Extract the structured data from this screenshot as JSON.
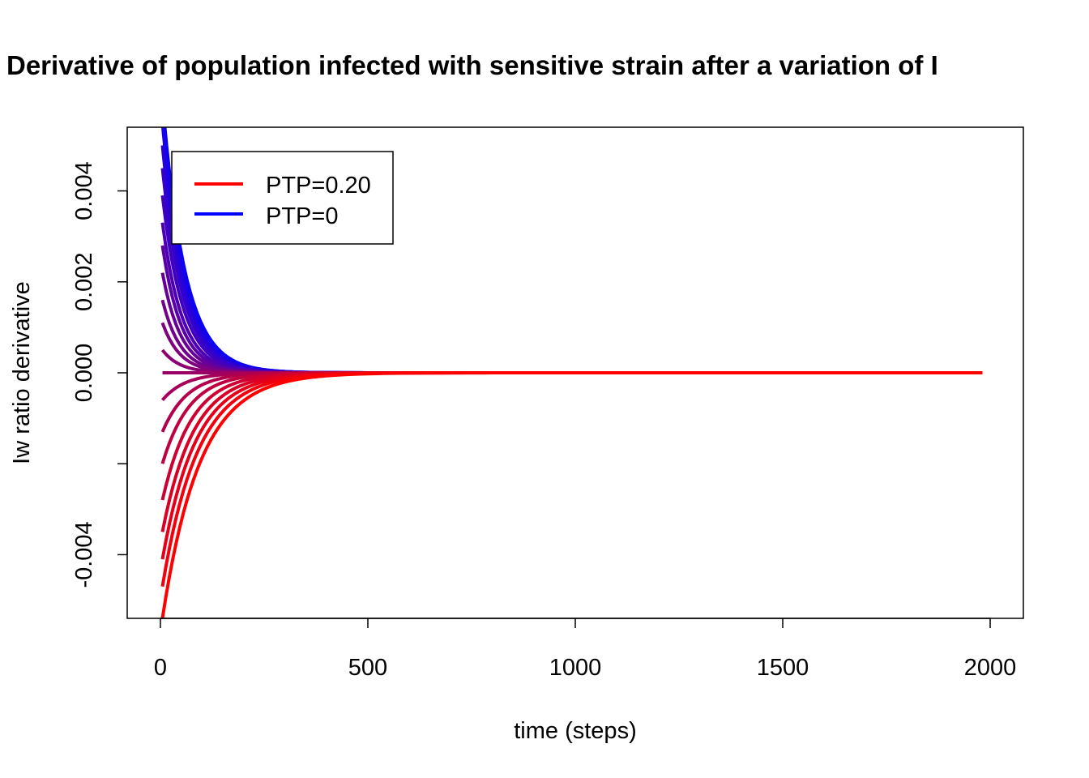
{
  "chart_data": {
    "type": "line",
    "title": "Derivative of population infected with sensitive strain after a variation of  I",
    "xlabel": "time (steps)",
    "ylabel": "Iw ratio derivative",
    "xlim": [
      -80,
      2080
    ],
    "ylim": [
      -0.0054,
      0.0054
    ],
    "x_ticks": [
      {
        "value": 0,
        "label": "0"
      },
      {
        "value": 500,
        "label": "500"
      },
      {
        "value": 1000,
        "label": "1000"
      },
      {
        "value": 1500,
        "label": "1500"
      },
      {
        "value": 2000,
        "label": "2000"
      }
    ],
    "y_ticks": [
      {
        "value": -0.004,
        "label": "-0.004"
      },
      {
        "value": -0.002,
        "label": ""
      },
      {
        "value": 0.0,
        "label": "0.000"
      },
      {
        "value": 0.002,
        "label": "0.002"
      },
      {
        "value": 0.004,
        "label": "0.004"
      }
    ],
    "grid": false,
    "legend": {
      "position": "top-left",
      "entries": [
        {
          "label": "PTP=0.20",
          "color": "#FF0000"
        },
        {
          "label": "PTP=0",
          "color": "#0000FF"
        }
      ]
    },
    "color_low": "#0000FF",
    "color_high": "#FF0000",
    "x_range": [
      5,
      2000
    ],
    "series": [
      {
        "ptp": 0.0,
        "start": 0.006,
        "decay": 55
      },
      {
        "ptp": 0.01,
        "start": 0.0058,
        "decay": 55
      },
      {
        "ptp": 0.02,
        "start": 0.0055,
        "decay": 53
      },
      {
        "ptp": 0.03,
        "start": 0.005,
        "decay": 52
      },
      {
        "ptp": 0.04,
        "start": 0.0045,
        "decay": 51
      },
      {
        "ptp": 0.05,
        "start": 0.0039,
        "decay": 50
      },
      {
        "ptp": 0.06,
        "start": 0.0033,
        "decay": 48
      },
      {
        "ptp": 0.07,
        "start": 0.0028,
        "decay": 46
      },
      {
        "ptp": 0.08,
        "start": 0.0022,
        "decay": 45
      },
      {
        "ptp": 0.09,
        "start": 0.0016,
        "decay": 44
      },
      {
        "ptp": 0.1,
        "start": 0.0011,
        "decay": 43
      },
      {
        "ptp": 0.11,
        "start": 0.0005,
        "decay": 42
      },
      {
        "ptp": 0.12,
        "start": 0.0,
        "decay": 40
      },
      {
        "ptp": 0.13,
        "start": -0.0006,
        "decay": 55
      },
      {
        "ptp": 0.14,
        "start": -0.0013,
        "decay": 60
      },
      {
        "ptp": 0.15,
        "start": -0.002,
        "decay": 65
      },
      {
        "ptp": 0.16,
        "start": -0.0028,
        "decay": 70
      },
      {
        "ptp": 0.17,
        "start": -0.0035,
        "decay": 75
      },
      {
        "ptp": 0.18,
        "start": -0.0041,
        "decay": 80
      },
      {
        "ptp": 0.19,
        "start": -0.0047,
        "decay": 85
      },
      {
        "ptp": 0.2,
        "start": -0.0054,
        "decay": 90
      }
    ]
  }
}
